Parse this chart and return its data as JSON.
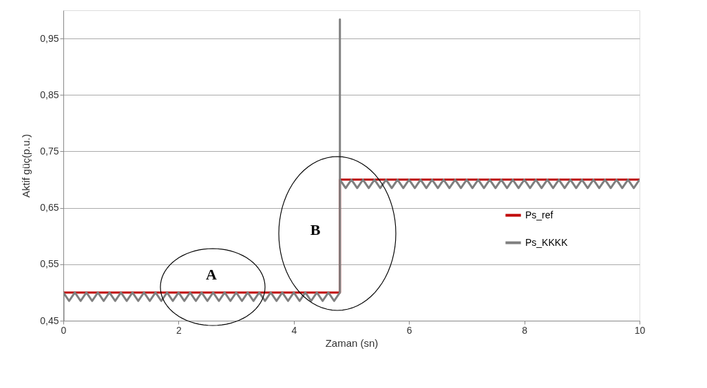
{
  "chart_data": {
    "type": "line",
    "xlabel": "Zaman (sn)",
    "ylabel": "Aktif güç(p.u.)",
    "xlim": [
      0,
      10
    ],
    "xticks": [
      0,
      2,
      4,
      6,
      8,
      10
    ],
    "ylim": [
      0.45,
      1.0
    ],
    "yticks": [
      {
        "value": 0.45,
        "label": "0,45"
      },
      {
        "value": 0.55,
        "label": "0,55"
      },
      {
        "value": 0.65,
        "label": "0,65"
      },
      {
        "value": 0.75,
        "label": "0,75"
      },
      {
        "value": 0.85,
        "label": "0,85"
      },
      {
        "value": 0.95,
        "label": "0,95"
      }
    ],
    "grid": "y",
    "legend": "right",
    "marker": "none",
    "line_style": "solid",
    "annotations": [
      "A",
      "B"
    ],
    "series": [
      {
        "name": "Ps_ref",
        "color": "#c00000",
        "x": [
          0,
          4.8,
          4.8,
          10
        ],
        "values": [
          0.5,
          0.5,
          0.7,
          0.7
        ]
      },
      {
        "name": "Ps_KKKK",
        "color": "#7f7f7f",
        "x": [
          0,
          0,
          0.1,
          0.2,
          0.3,
          0.4,
          0.5,
          0.6,
          0.7,
          0.8,
          0.9,
          1.0,
          1.1,
          1.2,
          1.3,
          1.4,
          1.5,
          1.6,
          1.7,
          1.8,
          1.9,
          2.0,
          2.1,
          2.2,
          2.3,
          2.4,
          2.5,
          2.6,
          2.7,
          2.8,
          2.9,
          3.0,
          3.1,
          3.2,
          3.3,
          3.4,
          3.5,
          3.6,
          3.7,
          3.8,
          3.9,
          4.0,
          4.1,
          4.2,
          4.3,
          4.4,
          4.5,
          4.6,
          4.7,
          4.8,
          4.8,
          4.8,
          4.9,
          5.0,
          5.1,
          5.2,
          5.3,
          5.4,
          5.5,
          5.6,
          5.7,
          5.8,
          5.9,
          6.0,
          6.1,
          6.2,
          6.3,
          6.4,
          6.5,
          6.6,
          6.7,
          6.8,
          6.9,
          7.0,
          7.1,
          7.2,
          7.3,
          7.4,
          7.5,
          7.6,
          7.7,
          7.8,
          7.9,
          8.0,
          8.1,
          8.2,
          8.3,
          8.4,
          8.5,
          8.6,
          8.7,
          8.8,
          8.9,
          9.0,
          9.1,
          9.2,
          9.3,
          9.4,
          9.5,
          9.6,
          9.7,
          9.8,
          9.9,
          10.0
        ],
        "values": [
          0.45,
          0.5,
          0.485,
          0.5,
          0.485,
          0.5,
          0.485,
          0.5,
          0.485,
          0.5,
          0.485,
          0.5,
          0.485,
          0.5,
          0.485,
          0.5,
          0.485,
          0.5,
          0.485,
          0.5,
          0.485,
          0.5,
          0.485,
          0.5,
          0.485,
          0.5,
          0.485,
          0.5,
          0.485,
          0.5,
          0.485,
          0.5,
          0.485,
          0.5,
          0.485,
          0.5,
          0.485,
          0.5,
          0.485,
          0.5,
          0.485,
          0.5,
          0.485,
          0.5,
          0.485,
          0.5,
          0.485,
          0.5,
          0.485,
          0.5,
          0.984,
          0.7,
          0.685,
          0.7,
          0.685,
          0.7,
          0.685,
          0.7,
          0.685,
          0.7,
          0.685,
          0.7,
          0.685,
          0.7,
          0.685,
          0.7,
          0.685,
          0.7,
          0.685,
          0.7,
          0.685,
          0.7,
          0.685,
          0.7,
          0.685,
          0.7,
          0.685,
          0.7,
          0.685,
          0.7,
          0.685,
          0.7,
          0.685,
          0.7,
          0.685,
          0.7,
          0.685,
          0.7,
          0.685,
          0.7,
          0.685,
          0.7,
          0.685,
          0.7,
          0.685,
          0.7,
          0.685,
          0.7,
          0.685,
          0.7,
          0.685,
          0.7,
          0.685,
          0.7
        ]
      }
    ]
  }
}
